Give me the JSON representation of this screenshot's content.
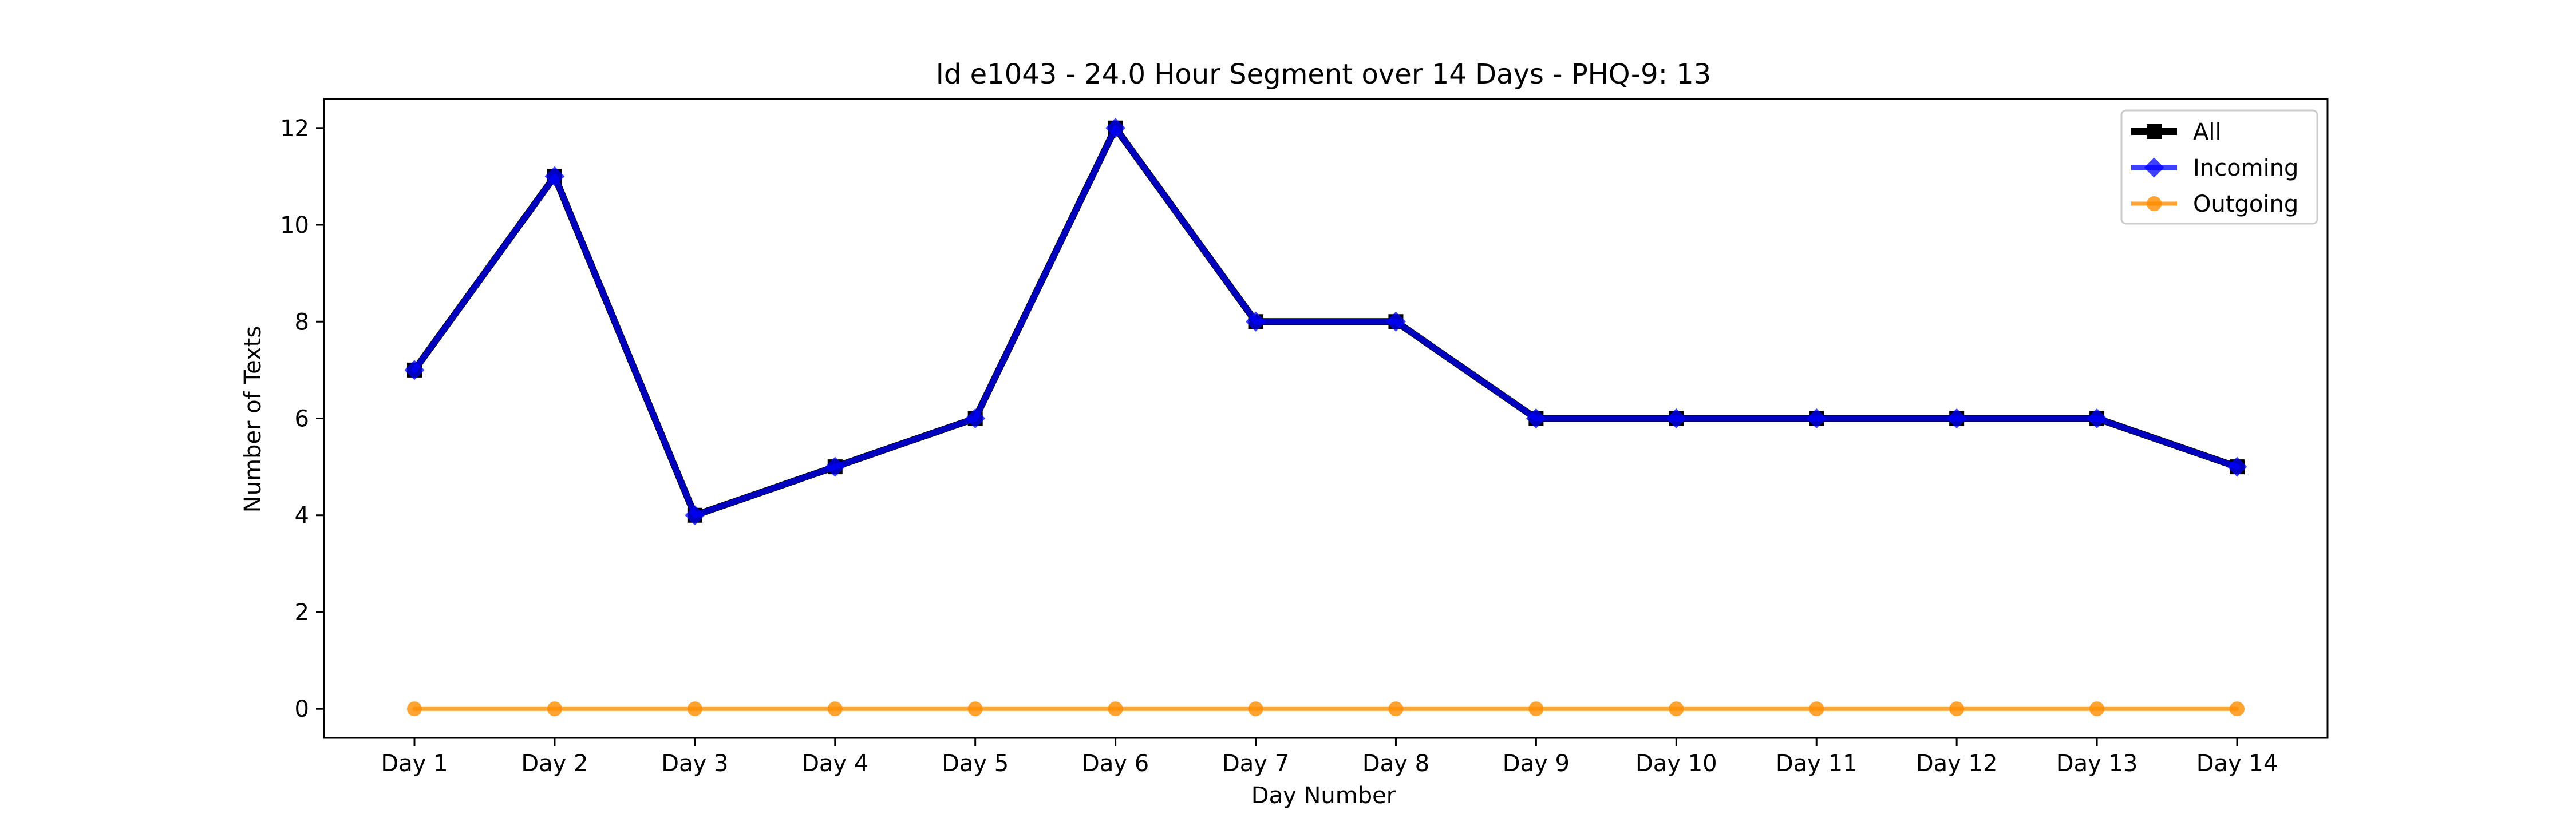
{
  "chart_data": {
    "type": "line",
    "title": "Id e1043 - 24.0 Hour Segment over 14 Days - PHQ-9: 13",
    "xlabel": "Day Number",
    "ylabel": "Number of Texts",
    "categories": [
      "Day 1",
      "Day 2",
      "Day 3",
      "Day 4",
      "Day 5",
      "Day 6",
      "Day 7",
      "Day 8",
      "Day 9",
      "Day 10",
      "Day 11",
      "Day 12",
      "Day 13",
      "Day 14"
    ],
    "yticks": [
      0,
      2,
      4,
      6,
      8,
      10,
      12
    ],
    "ylim": [
      -0.6,
      12.6
    ],
    "grid": false,
    "legend_position": "top-right",
    "series": [
      {
        "name": "All",
        "color": "#000000",
        "marker": "square",
        "values": [
          7,
          11,
          4,
          5,
          6,
          12,
          8,
          8,
          6,
          6,
          6,
          6,
          6,
          5
        ]
      },
      {
        "name": "Incoming",
        "color": "#0000ff",
        "marker": "diamond",
        "values": [
          7,
          11,
          4,
          5,
          6,
          12,
          8,
          8,
          6,
          6,
          6,
          6,
          6,
          5
        ]
      },
      {
        "name": "Outgoing",
        "color": "#ff8c00",
        "marker": "circle",
        "values": [
          0,
          0,
          0,
          0,
          0,
          0,
          0,
          0,
          0,
          0,
          0,
          0,
          0,
          0
        ]
      }
    ]
  }
}
